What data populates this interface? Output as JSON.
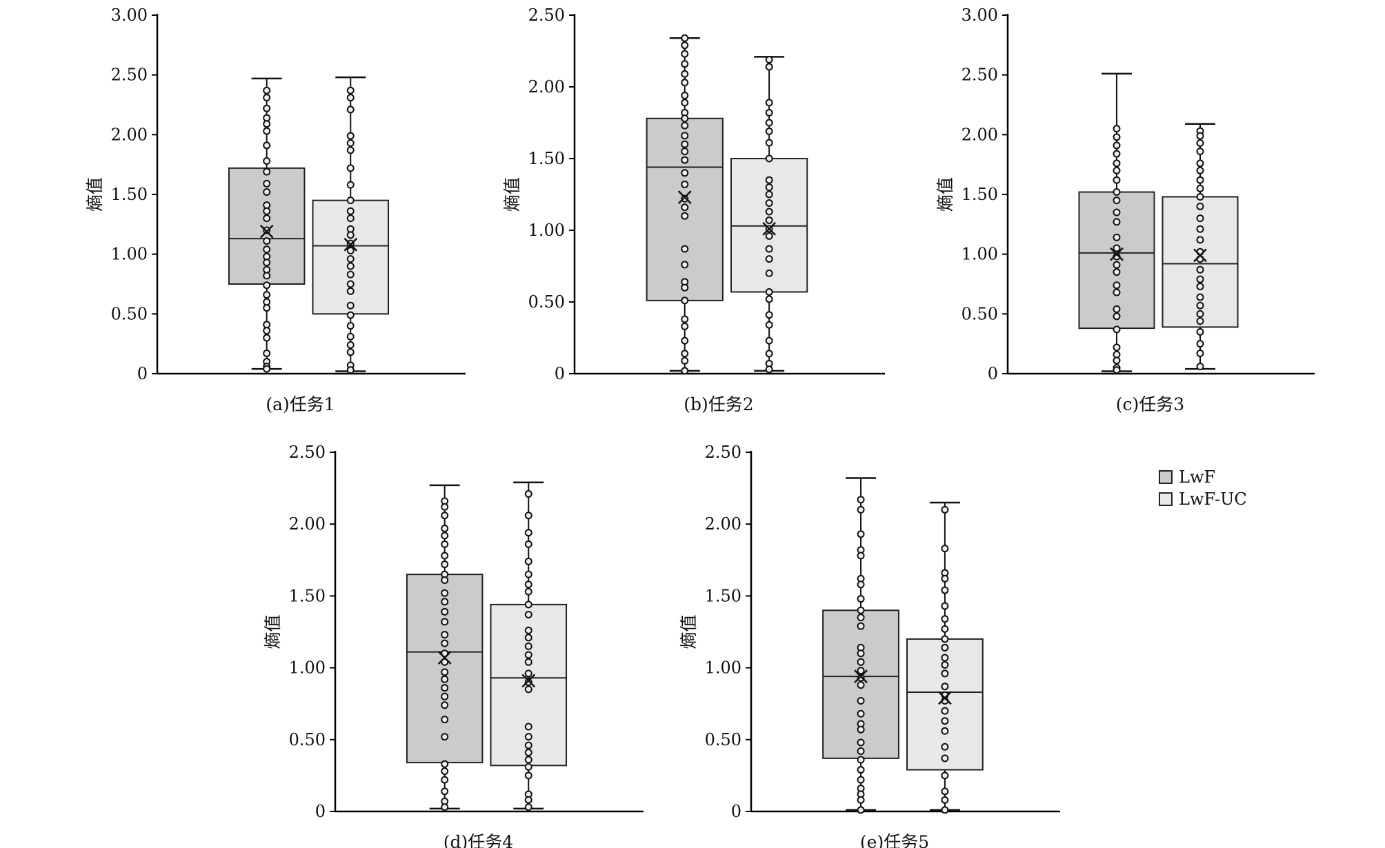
{
  "chart_data": [
    {
      "type": "box",
      "caption": "(a)任务1",
      "ylabel": "熵值",
      "ylim": [
        0,
        3.0
      ],
      "yticks": [
        "0",
        "0.50",
        "1.00",
        "1.50",
        "2.00",
        "2.50",
        "3.00"
      ],
      "series": [
        {
          "name": "LwF",
          "whisker_low": 0.04,
          "q1": 0.75,
          "median": 1.13,
          "q3": 1.72,
          "whisker_high": 2.47,
          "mean": 1.19,
          "points": [
            2.37,
            2.31,
            2.22,
            2.14,
            2.09,
            2.03,
            1.91,
            1.78,
            1.69,
            1.59,
            1.52,
            1.41,
            1.36,
            1.3,
            1.2,
            1.11,
            1.04,
            0.98,
            0.93,
            0.87,
            0.82,
            0.74,
            0.66,
            0.6,
            0.55,
            0.41,
            0.36,
            0.3,
            0.17,
            0.1,
            0.06,
            0.04
          ]
        },
        {
          "name": "LwF-UC",
          "whisker_low": 0.02,
          "q1": 0.5,
          "median": 1.07,
          "q3": 1.45,
          "whisker_high": 2.48,
          "mean": 1.08,
          "points": [
            2.37,
            2.31,
            2.21,
            1.99,
            1.93,
            1.87,
            1.72,
            1.58,
            1.45,
            1.36,
            1.3,
            1.21,
            1.16,
            1.09,
            1.03,
            0.96,
            0.9,
            0.83,
            0.75,
            0.69,
            0.57,
            0.49,
            0.4,
            0.31,
            0.24,
            0.18,
            0.07,
            0.03
          ]
        }
      ]
    },
    {
      "type": "box",
      "caption": "(b)任务2",
      "ylabel": "熵值",
      "ylim": [
        0,
        2.5
      ],
      "yticks": [
        "0",
        "0.50",
        "1.00",
        "1.50",
        "2.00",
        "2.50"
      ],
      "series": [
        {
          "name": "LwF",
          "whisker_low": 0.02,
          "q1": 0.51,
          "median": 1.44,
          "q3": 1.78,
          "whisker_high": 2.34,
          "mean": 1.23,
          "points": [
            2.34,
            2.29,
            2.23,
            2.16,
            2.09,
            2.03,
            1.94,
            1.89,
            1.82,
            1.78,
            1.73,
            1.66,
            1.6,
            1.55,
            1.49,
            1.4,
            1.32,
            1.22,
            1.16,
            1.1,
            0.87,
            0.76,
            0.64,
            0.6,
            0.51,
            0.38,
            0.33,
            0.23,
            0.14,
            0.09,
            0.02
          ]
        },
        {
          "name": "LwF-UC",
          "whisker_low": 0.02,
          "q1": 0.57,
          "median": 1.03,
          "q3": 1.5,
          "whisker_high": 2.21,
          "mean": 1.01,
          "points": [
            2.19,
            2.14,
            1.89,
            1.82,
            1.75,
            1.69,
            1.61,
            1.5,
            1.35,
            1.3,
            1.25,
            1.19,
            1.13,
            1.07,
            1.01,
            0.96,
            0.87,
            0.8,
            0.7,
            0.57,
            0.52,
            0.41,
            0.34,
            0.23,
            0.14,
            0.07,
            0.03
          ]
        }
      ]
    },
    {
      "type": "box",
      "caption": "(c)任务3",
      "ylabel": "熵值",
      "ylim": [
        0,
        3.0
      ],
      "yticks": [
        "0",
        "0.50",
        "1.00",
        "1.50",
        "2.00",
        "2.50",
        "3.00"
      ],
      "series": [
        {
          "name": "LwF",
          "whisker_low": 0.02,
          "q1": 0.38,
          "median": 1.01,
          "q3": 1.52,
          "whisker_high": 2.51,
          "mean": 1.0,
          "points": [
            2.05,
            1.98,
            1.91,
            1.84,
            1.76,
            1.7,
            1.62,
            1.52,
            1.45,
            1.35,
            1.27,
            1.14,
            1.05,
            0.98,
            0.91,
            0.85,
            0.74,
            0.68,
            0.54,
            0.48,
            0.37,
            0.22,
            0.16,
            0.11,
            0.05,
            0.03
          ]
        },
        {
          "name": "LwF-UC",
          "whisker_low": 0.04,
          "q1": 0.39,
          "median": 0.92,
          "q3": 1.48,
          "whisker_high": 2.09,
          "mean": 0.99,
          "points": [
            2.03,
            1.99,
            1.93,
            1.86,
            1.76,
            1.7,
            1.62,
            1.55,
            1.48,
            1.4,
            1.3,
            1.21,
            1.12,
            1.02,
            0.96,
            0.87,
            0.79,
            0.73,
            0.64,
            0.57,
            0.5,
            0.44,
            0.35,
            0.25,
            0.17,
            0.06
          ]
        }
      ]
    },
    {
      "type": "box",
      "caption": "(d)任务4",
      "ylabel": "熵值",
      "ylim": [
        0,
        2.5
      ],
      "yticks": [
        "0",
        "0.50",
        "1.00",
        "1.50",
        "2.00",
        "2.50"
      ],
      "series": [
        {
          "name": "LwF",
          "whisker_low": 0.02,
          "q1": 0.34,
          "median": 1.11,
          "q3": 1.65,
          "whisker_high": 2.27,
          "mean": 1.07,
          "points": [
            2.16,
            2.12,
            2.06,
            1.97,
            1.92,
            1.86,
            1.78,
            1.72,
            1.65,
            1.61,
            1.52,
            1.46,
            1.39,
            1.32,
            1.23,
            1.17,
            1.1,
            1.04,
            0.97,
            0.92,
            0.86,
            0.8,
            0.74,
            0.64,
            0.52,
            0.33,
            0.28,
            0.22,
            0.14,
            0.07,
            0.03
          ]
        },
        {
          "name": "LwF-UC",
          "whisker_low": 0.02,
          "q1": 0.32,
          "median": 0.93,
          "q3": 1.44,
          "whisker_high": 2.29,
          "mean": 0.91,
          "points": [
            2.21,
            2.06,
            1.94,
            1.86,
            1.74,
            1.65,
            1.58,
            1.53,
            1.44,
            1.37,
            1.26,
            1.21,
            1.15,
            1.09,
            1.04,
            0.96,
            0.9,
            0.85,
            0.59,
            0.52,
            0.46,
            0.41,
            0.36,
            0.31,
            0.25,
            0.12,
            0.08,
            0.03
          ]
        }
      ]
    },
    {
      "type": "box",
      "caption": "(e)任务5",
      "ylabel": "熵值",
      "ylim": [
        0,
        2.5
      ],
      "yticks": [
        "0",
        "0.50",
        "1.00",
        "1.50",
        "2.00",
        "2.50"
      ],
      "series": [
        {
          "name": "LwF",
          "whisker_low": 0.01,
          "q1": 0.37,
          "median": 0.94,
          "q3": 1.4,
          "whisker_high": 2.32,
          "mean": 0.94,
          "points": [
            2.17,
            2.1,
            1.93,
            1.82,
            1.78,
            1.62,
            1.58,
            1.48,
            1.4,
            1.35,
            1.29,
            1.14,
            1.1,
            1.04,
            0.98,
            0.93,
            0.88,
            0.77,
            0.68,
            0.61,
            0.57,
            0.48,
            0.42,
            0.36,
            0.29,
            0.22,
            0.16,
            0.12,
            0.08,
            0.01
          ]
        },
        {
          "name": "LwF-UC",
          "whisker_low": 0.01,
          "q1": 0.29,
          "median": 0.83,
          "q3": 1.2,
          "whisker_high": 2.15,
          "mean": 0.79,
          "points": [
            2.1,
            1.83,
            1.66,
            1.62,
            1.54,
            1.43,
            1.34,
            1.27,
            1.2,
            1.14,
            1.07,
            1.02,
            0.96,
            0.87,
            0.81,
            0.77,
            0.7,
            0.63,
            0.56,
            0.45,
            0.37,
            0.25,
            0.14,
            0.08,
            0.01
          ]
        }
      ]
    }
  ],
  "legend": {
    "placement": "right",
    "items": [
      {
        "label": "LwF",
        "color": "#cbcbcb"
      },
      {
        "label": "LwF-UC",
        "color": "#e8e8e8"
      }
    ]
  }
}
